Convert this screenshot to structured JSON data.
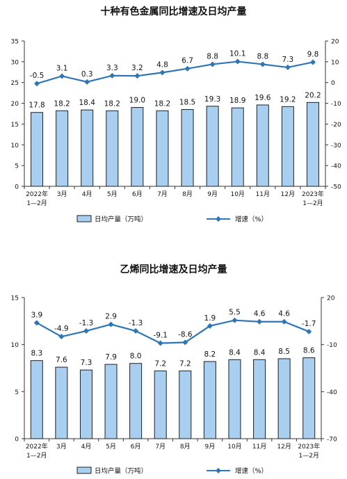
{
  "colors": {
    "bar_fill": "#a9cff0",
    "bar_stroke": "#1f1f1f",
    "line": "#2e75b6",
    "axis": "#333333"
  },
  "chart_data": [
    {
      "type": "bar",
      "title": "十种有色金属同比增速及日均产量",
      "categories": [
        "2022年\n1—2月",
        "3月",
        "4月",
        "5月",
        "6月",
        "7月",
        "8月",
        "9月",
        "10月",
        "11月",
        "12月",
        "2023年\n1—2月"
      ],
      "series": [
        {
          "name": "日均产量（万吨）",
          "type": "bar",
          "axis": "left",
          "values": [
            17.8,
            18.2,
            18.4,
            18.2,
            19.0,
            18.2,
            18.5,
            19.3,
            18.9,
            19.6,
            19.2,
            20.2
          ]
        },
        {
          "name": "增速（%）",
          "type": "line",
          "axis": "right",
          "values": [
            -0.5,
            3.1,
            0.3,
            3.3,
            3.2,
            4.8,
            6.7,
            8.8,
            10.1,
            8.8,
            7.3,
            9.8
          ]
        }
      ],
      "y_left": {
        "min": 0,
        "max": 35,
        "ticks": [
          0,
          5,
          10,
          15,
          20,
          25,
          30,
          35
        ]
      },
      "y_right": {
        "min": -50,
        "max": 20,
        "ticks": [
          -50,
          -40,
          -30,
          -20,
          -10,
          0,
          10,
          20
        ]
      },
      "grid": false,
      "legend_position": "bottom",
      "legend": [
        {
          "label": "日均产量（万吨）",
          "kind": "bar"
        },
        {
          "label": "增速（%）",
          "kind": "line"
        }
      ]
    },
    {
      "type": "bar",
      "title": "乙烯同比增速及日均产量",
      "categories": [
        "2022年\n1—2月",
        "3月",
        "4月",
        "5月",
        "6月",
        "7月",
        "8月",
        "9月",
        "10月",
        "11月",
        "12月",
        "2023年\n1—2月"
      ],
      "series": [
        {
          "name": "日均产量（万吨）",
          "type": "bar",
          "axis": "left",
          "values": [
            8.3,
            7.6,
            7.3,
            7.9,
            8.0,
            7.2,
            7.2,
            8.2,
            8.4,
            8.4,
            8.5,
            8.6
          ]
        },
        {
          "name": "增速（%）",
          "type": "line",
          "axis": "right",
          "values": [
            3.9,
            -4.9,
            -1.3,
            2.9,
            -1.3,
            -9.1,
            -8.6,
            1.9,
            5.5,
            4.6,
            4.6,
            -1.7
          ]
        }
      ],
      "y_left": {
        "min": 0,
        "max": 15,
        "ticks": [
          0,
          5,
          10,
          15
        ]
      },
      "y_right": {
        "min": -70,
        "max": 20,
        "ticks": [
          -70,
          -40,
          -10,
          20
        ]
      },
      "grid": false,
      "legend_position": "bottom",
      "legend": [
        {
          "label": "日均产量（万吨）",
          "kind": "bar"
        },
        {
          "label": "增速（%）",
          "kind": "line"
        }
      ]
    }
  ]
}
